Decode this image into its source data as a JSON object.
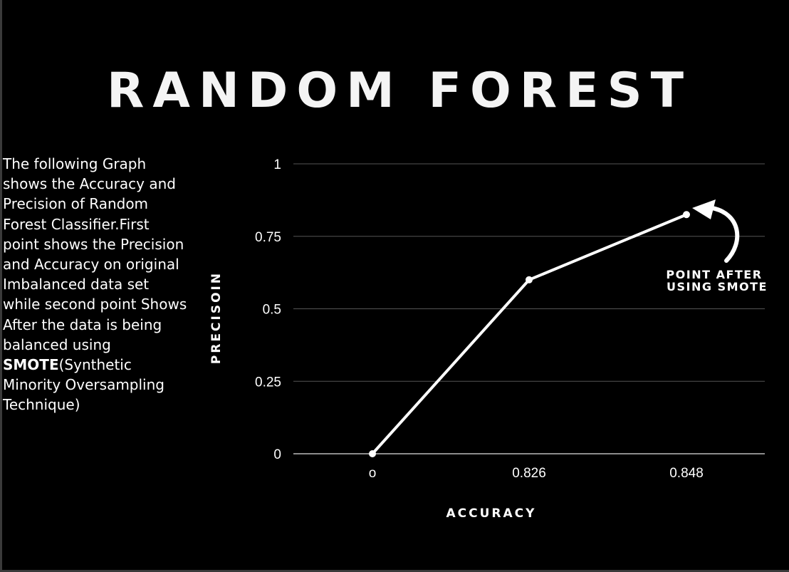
{
  "title": "RANDOM FOREST",
  "description": {
    "before": "The following Graph shows the Accuracy and Precision of Random Forest Classifier.First point shows the Precision and Accuracy on original Imbalanced data set while second point Shows After the data is being balanced using ",
    "bold": "SMOTE",
    "after": "(Synthetic Minority Oversampling Technique)"
  },
  "chart_data": {
    "type": "line",
    "xlabel": "ACCURACY",
    "ylabel": "PRECISOIN",
    "categories": [
      "o",
      "0.826",
      "0.848"
    ],
    "series": [
      {
        "values": [
          0,
          0.6,
          0.825
        ]
      }
    ],
    "ylim": [
      0,
      1
    ],
    "yticks": [
      0,
      0.25,
      0.5,
      0.75,
      1
    ],
    "ytick_labels": [
      "0",
      "0.25",
      "0.5",
      "0.75",
      "1"
    ],
    "grid": true,
    "annotation": {
      "lines": [
        "POINT AFTER",
        "USING SMOTE"
      ],
      "target_index": 2
    },
    "colors": {
      "background": "#000000",
      "line": "#ffffff",
      "grid": "#555555"
    }
  }
}
